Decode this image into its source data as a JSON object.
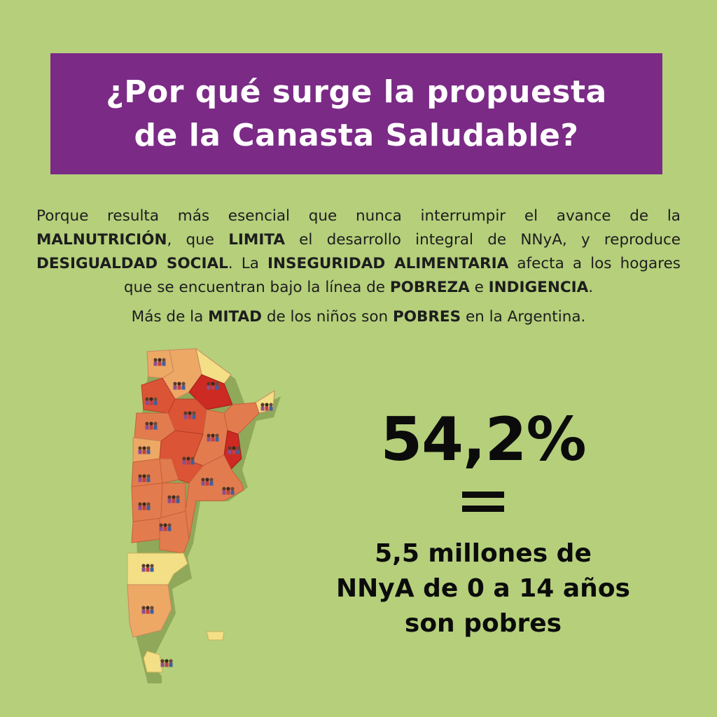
{
  "title": {
    "line1": "¿Por qué surge la propuesta",
    "line2": "de la Canasta Saludable?"
  },
  "paragraph": {
    "p1": "Porque resulta más esencial que nunca interrumpir el avance de la ",
    "k1": "MALNUTRICIÓN",
    "p2": ", que ",
    "k2": "LIMITA",
    "p3": " el desarrollo integral de NNyA, y reproduce ",
    "k3": "DESIGUALDAD SOCIAL",
    "p4": ". La ",
    "k4": "INSEGURIDAD ALIMENTARIA",
    "p5": " afecta a los hogares que se encuentran bajo la línea de ",
    "k5": "POBREZA",
    "p6": " e ",
    "k6": "INDIGENCIA",
    "p7": "."
  },
  "paragraph2": {
    "p1": "Más de la ",
    "k1": "MITAD",
    "p2": " de los niños son ",
    "k2": "POBRES",
    "p3": " en la Argentina."
  },
  "stat": {
    "percent": "54,2%",
    "line1": "5,5 millones de",
    "line2": "NNyA de 0 a 14 años",
    "line3": "son pobres"
  },
  "colors": {
    "background": "#b5cf7b",
    "title_box": "#7b2a86",
    "map_high": "#cc2a22",
    "map_mid_high": "#dc5436",
    "map_mid": "#e27c4e",
    "map_low": "#eda866",
    "map_lowest": "#f2df86"
  },
  "map": {
    "icon": "children-group-icon"
  }
}
